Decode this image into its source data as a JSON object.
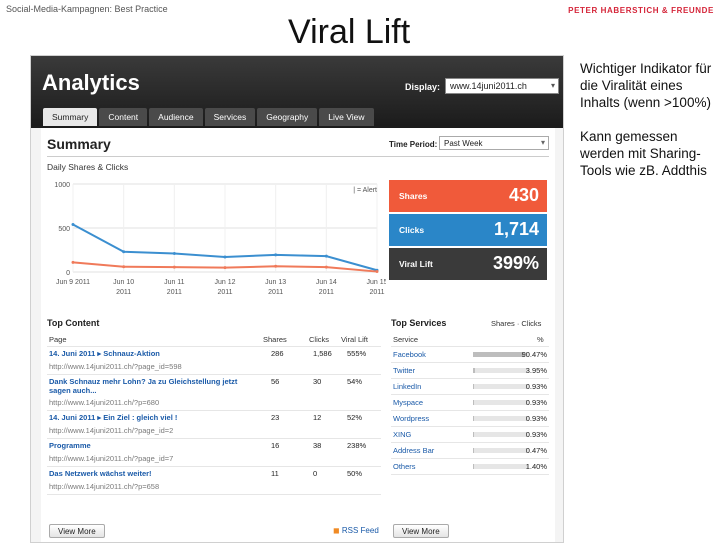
{
  "slide": {
    "breadcrumb": "Social-Media-Kampagnen: Best Practice",
    "brand": "PETER HABERSTICH & FREUNDE",
    "title": "Viral Lift",
    "note_1": "Wichtiger Indikator für die Viralität eines Inhalts (wenn >100%)",
    "note_2": "Kann gemessen werden mit Sharing-Tools wie zB. Addthis"
  },
  "app": {
    "title": "Analytics",
    "display_label": "Display:",
    "display_value": "www.14juni2011.ch",
    "tabs": [
      "Summary",
      "Content",
      "Audience",
      "Services",
      "Geography",
      "Live View"
    ]
  },
  "summary": {
    "heading": "Summary",
    "time_period_label": "Time Period:",
    "time_period_value": "Past Week",
    "chart_title": "Daily Shares & Clicks",
    "alert_label": "| = Alert"
  },
  "chart_data": {
    "type": "line",
    "categories": [
      "Jun 9 2011",
      "Jun 10 2011",
      "Jun 11 2011",
      "Jun 12 2011",
      "Jun 13 2011",
      "Jun 14 2011",
      "Jun 15 2011"
    ],
    "x_tick_top": [
      "Jun 9 2011",
      "Jun 10",
      "Jun 11",
      "Jun 12",
      "Jun 13",
      "Jun 14",
      "Jun 15"
    ],
    "x_tick_bottom": [
      "",
      "2011",
      "2011",
      "2011",
      "2011",
      "2011",
      "2011"
    ],
    "yticks": [
      0,
      500,
      1000
    ],
    "ylim": [
      0,
      1000
    ],
    "series": [
      {
        "values": [
          540,
          230,
          210,
          170,
          195,
          180,
          20
        ],
        "color": "#3b8fd0"
      },
      {
        "values": [
          110,
          60,
          55,
          50,
          65,
          55,
          5
        ],
        "color": "#f07a5a"
      }
    ]
  },
  "stats": {
    "shares_label": "Shares",
    "shares_value": "430",
    "clicks_label": "Clicks",
    "clicks_value": "1,714",
    "viral_label": "Viral Lift",
    "viral_value": "399%"
  },
  "top_content": {
    "heading": "Top Content",
    "columns": [
      "Page",
      "Shares",
      "Clicks",
      "Viral Lift"
    ],
    "rows": [
      {
        "title": "14. Juni 2011 ▸ Schnauz-Aktion",
        "url": "http://www.14juni2011.ch/?page_id=598",
        "shares": "286",
        "clicks": "1,586",
        "lift": "555%"
      },
      {
        "title": "Dank Schnauz mehr Lohn? Ja zu Gleichstellung jetzt sagen auch...",
        "url": "http://www.14juni2011.ch/?p=680",
        "shares": "56",
        "clicks": "30",
        "lift": "54%"
      },
      {
        "title": "14. Juni 2011 ▸ Ein Ziel : gleich viel !",
        "url": "http://www.14juni2011.ch/?page_id=2",
        "shares": "23",
        "clicks": "12",
        "lift": "52%"
      },
      {
        "title": "Programme",
        "url": "http://www.14juni2011.ch/?page_id=7",
        "shares": "16",
        "clicks": "38",
        "lift": "238%"
      },
      {
        "title": "Das Netzwerk wächst weiter!",
        "url": "http://www.14juni2011.ch/?p=658",
        "shares": "11",
        "clicks": "0",
        "lift": "50%"
      }
    ],
    "view_more": "View More",
    "rss": "RSS Feed"
  },
  "top_services": {
    "heading": "Top Services",
    "toggle": "Shares · Clicks",
    "columns": [
      "Service",
      "%"
    ],
    "rows": [
      {
        "name": "Facebook",
        "pct": "90.47%",
        "share": 0.9047
      },
      {
        "name": "Twitter",
        "pct": "3.95%",
        "share": 0.0395
      },
      {
        "name": "LinkedIn",
        "pct": "0.93%",
        "share": 0.0093
      },
      {
        "name": "Myspace",
        "pct": "0.93%",
        "share": 0.0093
      },
      {
        "name": "Wordpress",
        "pct": "0.93%",
        "share": 0.0093
      },
      {
        "name": "XING",
        "pct": "0.93%",
        "share": 0.0093
      },
      {
        "name": "Address Bar",
        "pct": "0.47%",
        "share": 0.0047
      },
      {
        "name": "Others",
        "pct": "1.40%",
        "share": 0.014
      }
    ],
    "view_more": "View More"
  }
}
